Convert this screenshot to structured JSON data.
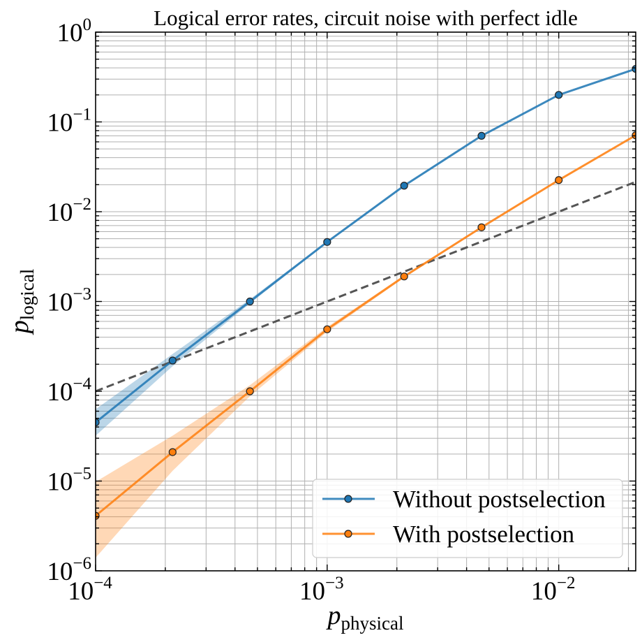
{
  "chart_data": {
    "type": "line",
    "title": "Logical error rates, circuit noise with perfect idle",
    "xlabel": {
      "main": "p",
      "sub": "physical"
    },
    "ylabel": {
      "main": "p",
      "sub": "logical"
    },
    "xscale": "log",
    "yscale": "log",
    "xlim": [
      0.0001,
      0.0215
    ],
    "ylim": [
      1e-06,
      1
    ],
    "grid": "major and minor",
    "x_ticks": [
      {
        "value": 0.0001,
        "base": "10",
        "exp": "−4"
      },
      {
        "value": 0.001,
        "base": "10",
        "exp": "−3"
      },
      {
        "value": 0.01,
        "base": "10",
        "exp": "−2"
      }
    ],
    "y_ticks": [
      {
        "value": 1e-06,
        "base": "10",
        "exp": "−6"
      },
      {
        "value": 1e-05,
        "base": "10",
        "exp": "−5"
      },
      {
        "value": 0.0001,
        "base": "10",
        "exp": "−4"
      },
      {
        "value": 0.001,
        "base": "10",
        "exp": "−3"
      },
      {
        "value": 0.01,
        "base": "10",
        "exp": "−2"
      },
      {
        "value": 0.1,
        "base": "10",
        "exp": "−1"
      },
      {
        "value": 1,
        "base": "10",
        "exp": "0"
      }
    ],
    "series": [
      {
        "name": "Without postselection",
        "color": "#1f77b4",
        "marker": "circle",
        "x": [
          0.0001,
          0.000215,
          0.000464,
          0.001,
          0.00215,
          0.00464,
          0.01,
          0.0215
        ],
        "y": [
          4.5e-05,
          0.00022,
          0.001,
          0.0046,
          0.0195,
          0.07,
          0.2,
          0.39
        ],
        "y_lower": [
          3.2e-05,
          0.00019,
          0.00095,
          0.0045,
          0.0192,
          0.0695,
          0.199,
          0.389
        ],
        "y_upper": [
          6.3e-05,
          0.00026,
          0.00106,
          0.0047,
          0.0198,
          0.0705,
          0.201,
          0.391
        ]
      },
      {
        "name": "With postselection",
        "color": "#ff7f0e",
        "marker": "circle",
        "x": [
          0.0001,
          0.000215,
          0.000464,
          0.001,
          0.00215,
          0.00464,
          0.01,
          0.0215
        ],
        "y": [
          4.1e-06,
          2.1e-05,
          0.0001,
          0.00049,
          0.0019,
          0.0067,
          0.0225,
          0.071
        ],
        "y_lower": [
          1.4e-06,
          1.3e-05,
          8.8e-05,
          0.00046,
          0.00184,
          0.0066,
          0.0222,
          0.0705
        ],
        "y_upper": [
          9.8e-06,
          3.2e-05,
          0.000117,
          0.00052,
          0.00196,
          0.0068,
          0.0228,
          0.0715
        ]
      }
    ],
    "reference_line": {
      "style": "dashed",
      "color": "#555555",
      "x": [
        0.0001,
        0.0215
      ],
      "y": [
        0.0001,
        0.0215
      ]
    },
    "legend_position": "bottom-right"
  }
}
